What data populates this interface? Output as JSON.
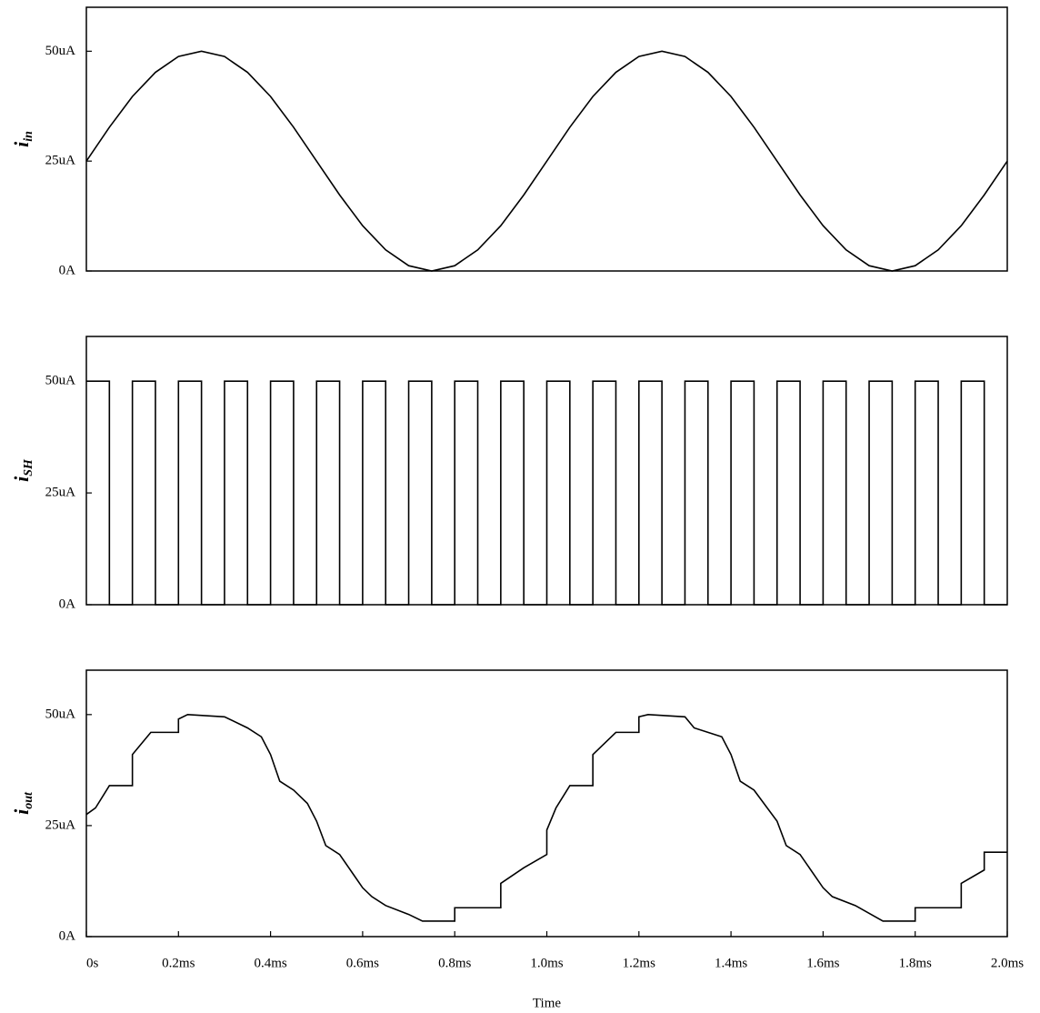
{
  "chart_data": [
    {
      "type": "line",
      "ylabel": "i",
      "ylabel_sub": "in",
      "color": "#000000",
      "x": [
        0,
        0.05,
        0.1,
        0.15,
        0.2,
        0.25,
        0.3,
        0.35,
        0.4,
        0.45,
        0.5,
        0.55,
        0.6,
        0.65,
        0.7,
        0.75,
        0.8,
        0.85,
        0.9,
        0.95,
        1.0,
        1.05,
        1.1,
        1.15,
        1.2,
        1.25,
        1.3,
        1.35,
        1.4,
        1.45,
        1.5,
        1.55,
        1.6,
        1.65,
        1.7,
        1.75,
        1.8,
        1.85,
        1.9,
        1.95,
        2.0
      ],
      "values": [
        25,
        32.7,
        39.7,
        45.2,
        48.8,
        50,
        48.8,
        45.2,
        39.7,
        32.7,
        25,
        17.3,
        10.3,
        4.8,
        1.2,
        0,
        1.2,
        4.8,
        10.3,
        17.3,
        25,
        32.7,
        39.7,
        45.2,
        48.8,
        50,
        48.8,
        45.2,
        39.7,
        32.7,
        25,
        17.3,
        10.3,
        4.8,
        1.2,
        0,
        1.2,
        4.8,
        10.3,
        17.3,
        25
      ],
      "xlim": [
        0,
        2.0
      ],
      "ylim": [
        0,
        60
      ],
      "yticks": [
        {
          "value": 0,
          "label": "0A"
        },
        {
          "value": 25,
          "label": "25uA"
        },
        {
          "value": 50,
          "label": "50uA"
        }
      ]
    },
    {
      "type": "line",
      "ylabel": "i",
      "ylabel_sub": "SH",
      "color": "#000000",
      "x": [
        0,
        0.05,
        0.05,
        0.1,
        0.1,
        0.15,
        0.15,
        0.2,
        0.2,
        0.25,
        0.25,
        0.3,
        0.3,
        0.35,
        0.35,
        0.4,
        0.4,
        0.45,
        0.45,
        0.5,
        0.5,
        0.55,
        0.55,
        0.6,
        0.6,
        0.65,
        0.65,
        0.7,
        0.7,
        0.75,
        0.75,
        0.8,
        0.8,
        0.85,
        0.85,
        0.9,
        0.9,
        0.95,
        0.95,
        1.0,
        1.0,
        1.05,
        1.05,
        1.1,
        1.1,
        1.15,
        1.15,
        1.2,
        1.2,
        1.25,
        1.25,
        1.3,
        1.3,
        1.35,
        1.35,
        1.4,
        1.4,
        1.45,
        1.45,
        1.5,
        1.5,
        1.55,
        1.55,
        1.6,
        1.6,
        1.65,
        1.65,
        1.7,
        1.7,
        1.75,
        1.75,
        1.8,
        1.8,
        1.85,
        1.85,
        1.9,
        1.9,
        1.95,
        1.95,
        2.0
      ],
      "values": [
        50,
        50,
        0,
        0,
        50,
        50,
        0,
        0,
        50,
        50,
        0,
        0,
        50,
        50,
        0,
        0,
        50,
        50,
        0,
        0,
        50,
        50,
        0,
        0,
        50,
        50,
        0,
        0,
        50,
        50,
        0,
        0,
        50,
        50,
        0,
        0,
        50,
        50,
        0,
        0,
        50,
        50,
        0,
        0,
        50,
        50,
        0,
        0,
        50,
        50,
        0,
        0,
        50,
        50,
        0,
        0,
        50,
        50,
        0,
        0,
        50,
        50,
        0,
        0,
        50,
        50,
        0,
        0,
        50,
        50,
        0,
        0,
        50,
        50,
        0,
        0,
        50,
        50,
        0,
        0
      ],
      "xlim": [
        0,
        2.0
      ],
      "ylim": [
        0,
        60
      ],
      "yticks": [
        {
          "value": 0,
          "label": "0A"
        },
        {
          "value": 25,
          "label": "25uA"
        },
        {
          "value": 50,
          "label": "50uA"
        }
      ]
    },
    {
      "type": "line",
      "ylabel": "i",
      "ylabel_sub": "out",
      "color": "#000000",
      "xlabel": "Time",
      "x": [
        0,
        0.02,
        0.05,
        0.1,
        0.1,
        0.14,
        0.2,
        0.2,
        0.22,
        0.3,
        0.35,
        0.38,
        0.4,
        0.42,
        0.45,
        0.48,
        0.5,
        0.52,
        0.55,
        0.58,
        0.6,
        0.62,
        0.65,
        0.7,
        0.73,
        0.8,
        0.8,
        0.9,
        0.9,
        0.95,
        1.0,
        1.0,
        1.02,
        1.05,
        1.1,
        1.1,
        1.15,
        1.2,
        1.2,
        1.22,
        1.3,
        1.32,
        1.35,
        1.38,
        1.4,
        1.42,
        1.45,
        1.5,
        1.52,
        1.55,
        1.6,
        1.62,
        1.67,
        1.73,
        1.8,
        1.8,
        1.9,
        1.9,
        1.95,
        1.95,
        2.0
      ],
      "values": [
        27.5,
        29,
        34,
        34,
        41,
        46,
        46,
        49,
        50,
        49.5,
        47,
        45,
        41,
        35,
        33,
        30,
        26,
        20.5,
        18.5,
        14,
        11,
        9,
        7,
        5,
        3.5,
        3.5,
        6.5,
        6.5,
        12,
        15.5,
        18.5,
        24,
        29,
        34,
        34,
        41,
        46,
        46,
        49.5,
        50,
        49.5,
        47,
        46,
        45,
        41,
        35,
        33,
        26,
        20.5,
        18.5,
        11,
        9,
        7,
        3.5,
        3.5,
        6.5,
        6.5,
        12,
        15,
        19,
        19
      ],
      "xlim": [
        0,
        2.0
      ],
      "ylim": [
        0,
        60
      ],
      "yticks": [
        {
          "value": 0,
          "label": "0A"
        },
        {
          "value": 25,
          "label": "25uA"
        },
        {
          "value": 50,
          "label": "50uA"
        }
      ],
      "xticks": [
        {
          "value": 0,
          "label": "0s"
        },
        {
          "value": 0.2,
          "label": "0.2ms"
        },
        {
          "value": 0.4,
          "label": "0.4ms"
        },
        {
          "value": 0.6,
          "label": "0.6ms"
        },
        {
          "value": 0.8,
          "label": "0.8ms"
        },
        {
          "value": 1.0,
          "label": "1.0ms"
        },
        {
          "value": 1.2,
          "label": "1.2ms"
        },
        {
          "value": 1.4,
          "label": "1.4ms"
        },
        {
          "value": 1.6,
          "label": "1.6ms"
        },
        {
          "value": 1.8,
          "label": "1.8ms"
        },
        {
          "value": 2.0,
          "label": "2.0ms"
        }
      ]
    }
  ]
}
